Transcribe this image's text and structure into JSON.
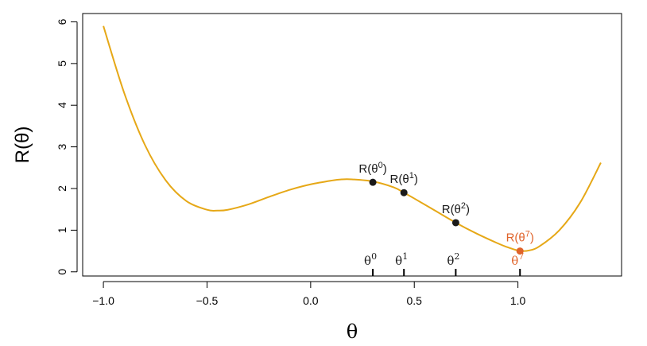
{
  "chart_data": {
    "type": "line",
    "title": "",
    "xlabel": "θ",
    "ylabel": "R(θ)",
    "xlim": [
      -1.1,
      1.5
    ],
    "ylim": [
      -0.1,
      6.2
    ],
    "xticks": [
      -1.0,
      -0.5,
      0.0,
      0.5,
      1.0
    ],
    "xtick_labels": [
      "−1.0",
      "−0.5",
      "0.0",
      "0.5",
      "1.0"
    ],
    "yticks": [
      0,
      1,
      2,
      3,
      4,
      5,
      6
    ],
    "ytick_labels": [
      "0",
      "1",
      "2",
      "3",
      "4",
      "5",
      "6"
    ],
    "grid": false,
    "series": [
      {
        "color": "#E6A817",
        "x": [
          -1.0,
          -0.9,
          -0.8,
          -0.7,
          -0.6,
          -0.5,
          -0.45,
          -0.4,
          -0.3,
          -0.2,
          -0.1,
          0.0,
          0.1,
          0.15,
          0.2,
          0.3,
          0.4,
          0.45,
          0.5,
          0.6,
          0.7,
          0.8,
          0.9,
          0.95,
          1.0,
          1.02,
          1.05,
          1.1,
          1.2,
          1.3,
          1.4
        ],
        "y": [
          5.9,
          4.3,
          3.05,
          2.2,
          1.7,
          1.49,
          1.47,
          1.49,
          1.62,
          1.8,
          1.97,
          2.1,
          2.19,
          2.22,
          2.22,
          2.17,
          2.03,
          1.9,
          1.76,
          1.47,
          1.18,
          0.92,
          0.69,
          0.59,
          0.51,
          0.5,
          0.51,
          0.6,
          1.0,
          1.66,
          2.62
        ]
      }
    ],
    "points": [
      {
        "label_base": "R(θ",
        "sup": "0",
        "x": 0.3,
        "y": 2.15,
        "color": "#1a1a1a",
        "tick_base": "θ"
      },
      {
        "label_base": "R(θ",
        "sup": "1",
        "x": 0.45,
        "y": 1.9,
        "color": "#1a1a1a",
        "tick_base": "θ"
      },
      {
        "label_base": "R(θ",
        "sup": "2",
        "x": 0.7,
        "y": 1.18,
        "color": "#1a1a1a",
        "tick_base": "θ"
      },
      {
        "label_base": "R(θ",
        "sup": "7",
        "x": 1.01,
        "y": 0.5,
        "color": "#E0632A",
        "tick_base": "θ"
      }
    ]
  }
}
